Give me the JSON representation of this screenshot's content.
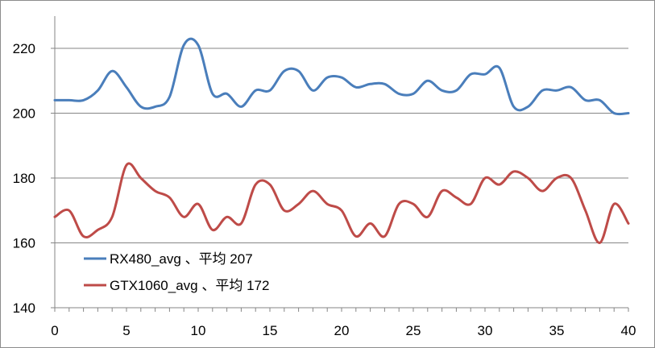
{
  "chart_data": {
    "type": "line",
    "title": "",
    "xlabel": "",
    "ylabel": "",
    "xlim": [
      0,
      40
    ],
    "ylim": [
      140,
      230
    ],
    "xticks": [
      0,
      5,
      10,
      15,
      20,
      25,
      30,
      35,
      40
    ],
    "yticks": [
      140,
      160,
      180,
      200,
      220
    ],
    "grid": "horizontal",
    "legend_position": "lower-left",
    "x": [
      0,
      1,
      2,
      3,
      4,
      5,
      6,
      7,
      8,
      9,
      10,
      11,
      12,
      13,
      14,
      15,
      16,
      17,
      18,
      19,
      20,
      21,
      22,
      23,
      24,
      25,
      26,
      27,
      28,
      29,
      30,
      31,
      32,
      33,
      34,
      35,
      36,
      37,
      38,
      39,
      40
    ],
    "series": [
      {
        "name": "RX480_avg 、平均 207",
        "color": "#4a7ebb",
        "values": [
          204,
          204,
          204,
          207,
          213,
          208,
          202,
          202,
          205,
          221,
          221,
          206,
          206,
          202,
          207,
          207,
          213,
          213,
          207,
          211,
          211,
          208,
          209,
          209,
          206,
          206,
          210,
          207,
          207,
          212,
          212,
          214,
          202,
          202,
          207,
          207,
          208,
          204,
          204,
          200,
          200
        ]
      },
      {
        "name": "GTX1060_avg 、平均 172",
        "color": "#be4b48",
        "values": [
          168,
          170,
          162,
          164,
          168,
          184,
          180,
          176,
          174,
          168,
          172,
          164,
          168,
          166,
          178,
          178,
          170,
          172,
          176,
          172,
          170,
          162,
          166,
          162,
          172,
          172,
          168,
          176,
          174,
          172,
          180,
          178,
          182,
          180,
          176,
          180,
          180,
          170,
          160,
          172,
          166
        ]
      }
    ]
  }
}
